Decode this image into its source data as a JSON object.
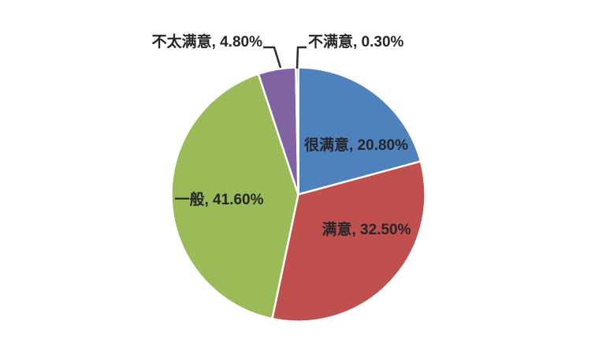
{
  "chart_data": {
    "type": "pie",
    "start_angle": "top",
    "direction": "clockwise",
    "legend": "none",
    "background": "#FFFFFF",
    "label_color": "#262626",
    "leader_line_color": "#2E2E2E",
    "slice_border_color": "#FFFFFF",
    "slices": [
      {
        "name": "very-satisfied",
        "label": "很满意",
        "value": 20.8,
        "display": "很满意, 20.80%",
        "color": "#4F81BD",
        "label_placement": "inside"
      },
      {
        "name": "satisfied",
        "label": "满意",
        "value": 32.5,
        "display": "满意, 32.50%",
        "color": "#C0504D",
        "label_placement": "inside"
      },
      {
        "name": "neutral",
        "label": "一般",
        "value": 41.6,
        "display": "一般, 41.60%",
        "color": "#9BBB59",
        "label_placement": "inside"
      },
      {
        "name": "somewhat-dissatisfied",
        "label": "不太满意",
        "value": 4.8,
        "display": "不太满意, 4.80%",
        "color": "#8064A2",
        "label_placement": "outside"
      },
      {
        "name": "dissatisfied",
        "label": "不满意",
        "value": 0.3,
        "display": "不满意, 0.30%",
        "color": "#4BACC6",
        "label_placement": "outside"
      }
    ]
  }
}
